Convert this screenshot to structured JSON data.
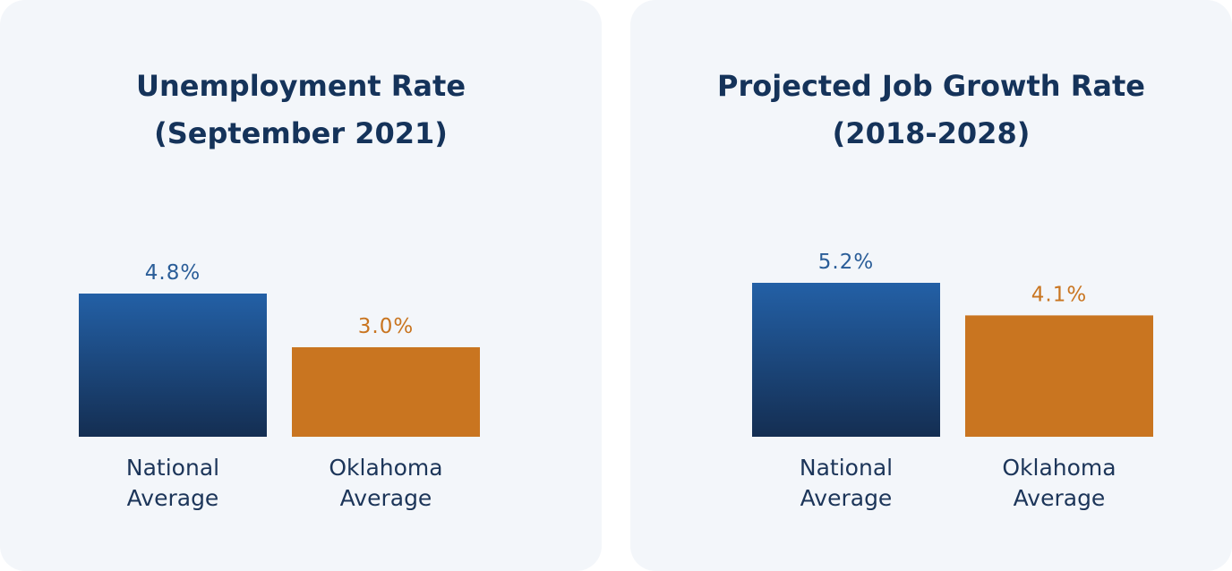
{
  "colors": {
    "national_top": "#2360a6",
    "national_bottom": "#142e52",
    "oklahoma": "#c97520",
    "national_label": "#2a5d98",
    "oklahoma_label": "#c97520",
    "category_text": "#1c3559"
  },
  "chart_data": [
    {
      "type": "bar",
      "title": [
        "Unemployment Rate",
        "(September 2021)"
      ],
      "categories": [
        [
          "National",
          "Average"
        ],
        [
          "Oklahoma",
          "Average"
        ]
      ],
      "values": [
        4.8,
        3.0
      ],
      "value_labels": [
        "4.8%",
        "3.0%"
      ],
      "unit": "%",
      "ylim": [
        0,
        4.8
      ],
      "grid": false,
      "legend": "none"
    },
    {
      "type": "bar",
      "title": [
        "Projected Job Growth Rate",
        "(2018-2028)"
      ],
      "categories": [
        [
          "National",
          "Average"
        ],
        [
          "Oklahoma",
          "Average"
        ]
      ],
      "values": [
        5.2,
        4.1
      ],
      "value_labels": [
        "5.2%",
        "4.1%"
      ],
      "unit": "%",
      "ylim": [
        0,
        5.2
      ],
      "grid": false,
      "legend": "none"
    }
  ]
}
